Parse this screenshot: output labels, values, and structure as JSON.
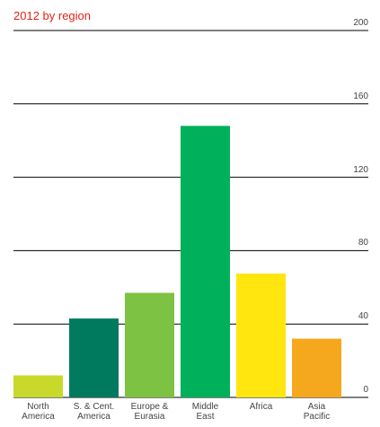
{
  "chart_data": {
    "type": "bar",
    "title": "2012 by region",
    "categories": [
      "North\nAmerica",
      "S. & Cent.\nAmerica",
      "Europe &\nEurasia",
      "Middle\nEast",
      "Africa",
      "Asia\nPacific"
    ],
    "values": [
      12,
      43,
      57,
      148,
      67.5,
      32
    ],
    "colors": [
      "#c8d92b",
      "#007a5e",
      "#7dc242",
      "#00b05a",
      "#ffe60f",
      "#f5a81d"
    ],
    "ylim": [
      0,
      200
    ],
    "yticks": [
      0,
      40,
      80,
      120,
      160,
      200
    ],
    "grid": true
  }
}
